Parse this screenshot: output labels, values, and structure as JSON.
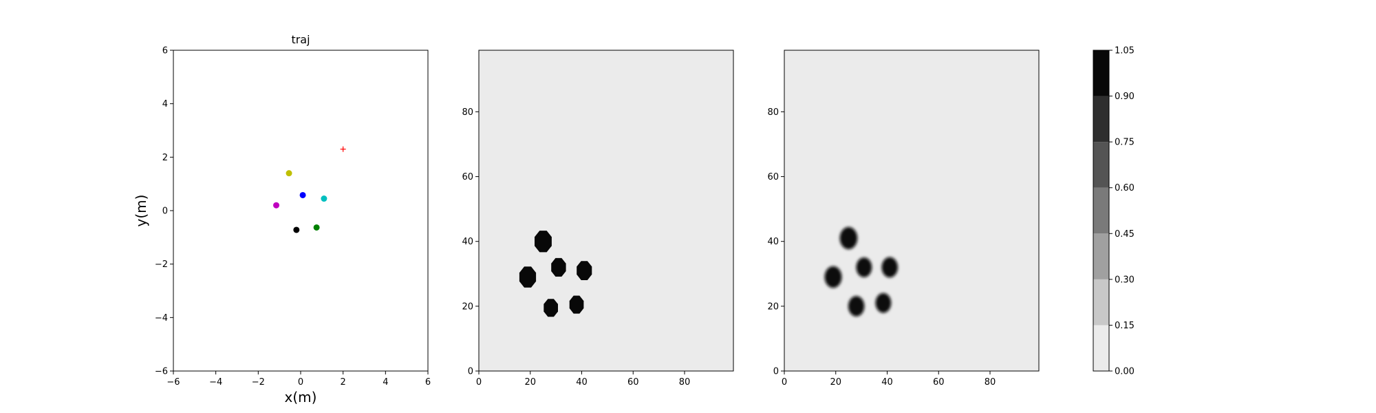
{
  "chart_data": [
    {
      "type": "scatter",
      "title": "traj",
      "xlabel": "x(m)",
      "ylabel": "y(m)",
      "xlim": [
        -6,
        6
      ],
      "ylim": [
        -6,
        6
      ],
      "xticks": [
        -6,
        -4,
        -2,
        0,
        2,
        4,
        6
      ],
      "yticks": [
        -6,
        -4,
        -2,
        0,
        2,
        4,
        6
      ],
      "xtick_labels": [
        "−6",
        "−4",
        "−2",
        "0",
        "2",
        "4",
        "6"
      ],
      "ytick_labels": [
        "−6",
        "−4",
        "−2",
        "0",
        "2",
        "4",
        "6"
      ],
      "points": [
        {
          "name": "agent-yellow",
          "x": -0.55,
          "y": 1.4,
          "color": "#bfbf00",
          "marker": "circle"
        },
        {
          "name": "agent-blue",
          "x": 0.1,
          "y": 0.58,
          "color": "#0000ff",
          "marker": "circle"
        },
        {
          "name": "agent-cyan",
          "x": 1.1,
          "y": 0.45,
          "color": "#00bfbf",
          "marker": "circle"
        },
        {
          "name": "agent-magenta",
          "x": -1.15,
          "y": 0.2,
          "color": "#bf00bf",
          "marker": "circle"
        },
        {
          "name": "agent-green",
          "x": 0.75,
          "y": -0.63,
          "color": "#008000",
          "marker": "circle"
        },
        {
          "name": "agent-black",
          "x": -0.2,
          "y": -0.72,
          "color": "#000000",
          "marker": "circle"
        },
        {
          "name": "goal",
          "x": 2.0,
          "y": 2.3,
          "color": "#ff0000",
          "marker": "plus"
        }
      ]
    },
    {
      "type": "heatmap",
      "title": "",
      "xlim": [
        0,
        99
      ],
      "ylim": [
        0,
        99
      ],
      "xticks": [
        0,
        20,
        40,
        60,
        80
      ],
      "yticks": [
        0,
        20,
        40,
        60,
        80
      ],
      "background_value": 0.0,
      "blob_value": 1.0,
      "edge": "sharp",
      "blobs": [
        {
          "x": 25,
          "y": 40,
          "r": 3.6
        },
        {
          "x": 19,
          "y": 29,
          "r": 3.5
        },
        {
          "x": 31,
          "y": 32,
          "r": 3.1
        },
        {
          "x": 41,
          "y": 31,
          "r": 3.2
        },
        {
          "x": 28,
          "y": 19.5,
          "r": 3.0
        },
        {
          "x": 38,
          "y": 20.5,
          "r": 3.0
        }
      ]
    },
    {
      "type": "heatmap",
      "title": "",
      "xlim": [
        0,
        99
      ],
      "ylim": [
        0,
        99
      ],
      "xticks": [
        0,
        20,
        40,
        60,
        80
      ],
      "yticks": [
        0,
        20,
        40,
        60,
        80
      ],
      "background_value": 0.0,
      "blob_value": 1.0,
      "edge": "soft",
      "blobs": [
        {
          "x": 25,
          "y": 41,
          "r": 3.6
        },
        {
          "x": 19,
          "y": 29,
          "r": 3.5
        },
        {
          "x": 31,
          "y": 32,
          "r": 3.2
        },
        {
          "x": 41,
          "y": 32,
          "r": 3.3
        },
        {
          "x": 28,
          "y": 20,
          "r": 3.3
        },
        {
          "x": 38.5,
          "y": 21,
          "r": 3.2
        }
      ]
    }
  ],
  "colorbar": {
    "min": 0.0,
    "max": 1.05,
    "levels": [
      0.0,
      0.15,
      0.3,
      0.45,
      0.6,
      0.75,
      0.9,
      1.05
    ],
    "tick_labels": [
      "0.00",
      "0.15",
      "0.30",
      "0.45",
      "0.60",
      "0.75",
      "0.90",
      "1.05"
    ],
    "colors": [
      "#ebebeb",
      "#c8c8c8",
      "#a0a0a0",
      "#7a7a7a",
      "#545454",
      "#2e2e2e",
      "#080808"
    ]
  }
}
